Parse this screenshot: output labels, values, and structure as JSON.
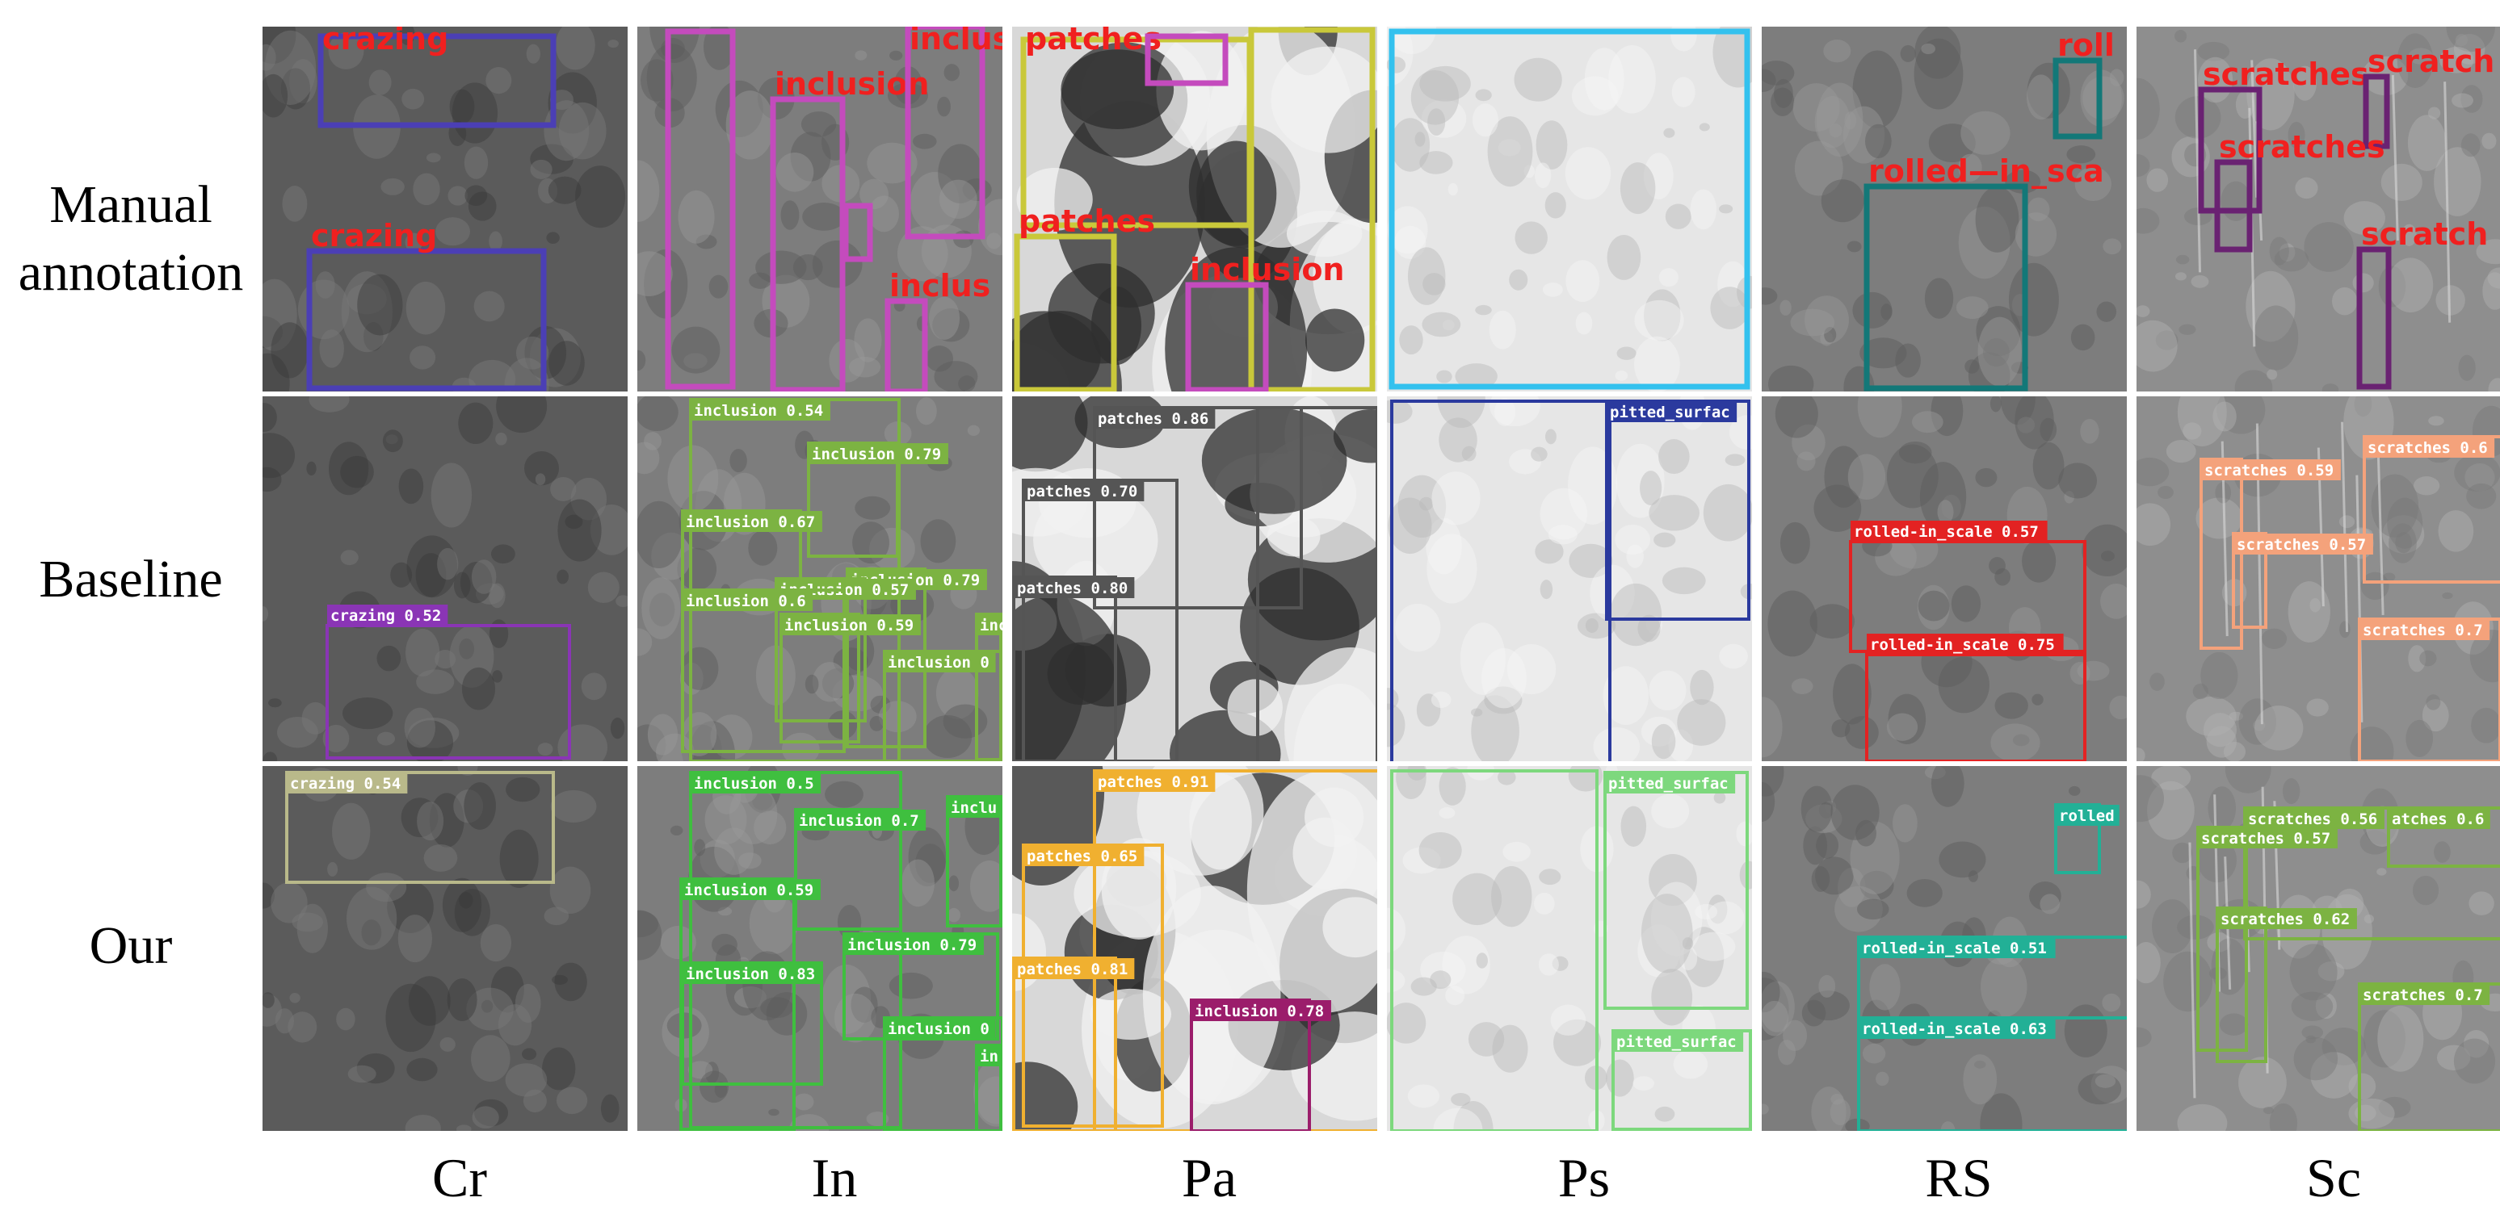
{
  "figure": {
    "rows": [
      {
        "id": "manual",
        "label_lines": [
          "Manual",
          "annotation"
        ]
      },
      {
        "id": "baseline",
        "label_lines": [
          "Baseline"
        ]
      },
      {
        "id": "ours",
        "label_lines": [
          "Our"
        ]
      }
    ],
    "columns": [
      {
        "id": "cr",
        "label": "Cr",
        "tone": "dark"
      },
      {
        "id": "in",
        "label": "In",
        "tone": "mid"
      },
      {
        "id": "pa",
        "label": "Pa",
        "tone": "patchy"
      },
      {
        "id": "ps",
        "label": "Ps",
        "tone": "light"
      },
      {
        "id": "rs",
        "label": "RS",
        "tone": "mid"
      },
      {
        "id": "sc",
        "label": "Sc",
        "tone": "smooth"
      }
    ],
    "colors": {
      "crazing_manual": "#4b3fb5",
      "inclusion_manual": "#c44bbd",
      "patches_manual": "#c9c83a",
      "pitted_manual": "#33c1ee",
      "rolled_manual": "#137878",
      "scratches_manual": "#6a2272",
      "manual_text": "#f0201f",
      "crazing_base": "#8a35b5",
      "inclusion_base": "#7cb342",
      "patches_base": "#555555",
      "pitted_base": "#2b3a9e",
      "rolled_base": "#e32222",
      "scratches_base": "#f4a27b",
      "crazing_ours": "#b9b98a",
      "inclusion_ours": "#3fbf3f",
      "patches_ours": "#f0b030",
      "inclusion_ours_pa": "#9b1d6b",
      "pitted_ours": "#7dd87d",
      "rolled_ours": "#22b096",
      "scratches_ours": "#7cb342"
    },
    "cells": {
      "manual": {
        "cr": [
          {
            "label": "crazing",
            "color": "crazing_manual"
          },
          {
            "label": "crazing",
            "color": "crazing_manual"
          }
        ],
        "in": [
          {
            "label": "",
            "color": "inclusion_manual"
          },
          {
            "label": "inclusion",
            "color": "inclusion_manual"
          },
          {
            "label": "inclusion",
            "color": "inclusion_manual"
          },
          {
            "label": "",
            "color": "inclusion_manual"
          },
          {
            "label": "inclus",
            "color": "inclusion_manual"
          }
        ],
        "pa": [
          {
            "label": "patches",
            "color": "patches_manual"
          },
          {
            "label": "",
            "color": "inclusion_manual"
          },
          {
            "label": "",
            "color": "patches_manual"
          },
          {
            "label": "patches",
            "color": "patches_manual"
          },
          {
            "label": "inclusion",
            "color": "inclusion_manual"
          }
        ],
        "ps": [
          {
            "label": "",
            "color": "pitted_manual"
          }
        ],
        "rs": [
          {
            "label": "roll",
            "color": "rolled_manual"
          },
          {
            "label": "rolled—in_sca",
            "color": "rolled_manual"
          }
        ],
        "sc": [
          {
            "label": "scratches",
            "color": "scratches_manual"
          },
          {
            "label": "scratch",
            "color": "scratches_manual"
          },
          {
            "label": "scratches",
            "color": "scratches_manual"
          },
          {
            "label": "scratch",
            "color": "scratches_manual"
          }
        ]
      },
      "baseline": {
        "cr": [
          {
            "label": "crazing 0.52",
            "color": "crazing_base"
          }
        ],
        "in": [
          {
            "label": "inclusion 0.54",
            "color": "inclusion_base"
          },
          {
            "label": "inclusion 0.79",
            "color": "inclusion_base"
          },
          {
            "label": "inclusion 0.67",
            "color": "inclusion_base"
          },
          {
            "label": "inclusion 0.79",
            "color": "inclusion_base"
          },
          {
            "label": "inclusion 0.57",
            "color": "inclusion_base"
          },
          {
            "label": "inclusion 0.6",
            "color": "inclusion_base"
          },
          {
            "label": "inclusion 0.59",
            "color": "inclusion_base"
          },
          {
            "label": "inclusion 0",
            "color": "inclusion_base"
          },
          {
            "label": "inc",
            "color": "inclusion_base"
          }
        ],
        "pa": [
          {
            "label": "patches 0.86",
            "color": "patches_base"
          },
          {
            "label": "patches 0.70",
            "color": "patches_base"
          },
          {
            "label": "patches 0.80",
            "color": "patches_base"
          },
          {
            "label": "",
            "color": "patches_base"
          }
        ],
        "ps": [
          {
            "label": "",
            "color": "pitted_base"
          },
          {
            "label": "pitted_surfac",
            "color": "pitted_base"
          }
        ],
        "rs": [
          {
            "label": "rolled-in_scale 0.57",
            "color": "rolled_base"
          },
          {
            "label": "rolled-in_scale 0.75",
            "color": "rolled_base"
          }
        ],
        "sc": [
          {
            "label": "scratches 0.59",
            "color": "scratches_base"
          },
          {
            "label": "scratches 0.6",
            "color": "scratches_base"
          },
          {
            "label": "scratches 0.57",
            "color": "scratches_base"
          },
          {
            "label": "scratches 0.7",
            "color": "scratches_base"
          }
        ]
      },
      "ours": {
        "cr": [
          {
            "label": "crazing 0.54",
            "color": "crazing_ours"
          }
        ],
        "in": [
          {
            "label": "inclusion 0.5",
            "color": "inclusion_ours"
          },
          {
            "label": "inclusion 0.7",
            "color": "inclusion_ours"
          },
          {
            "label": "inclu",
            "color": "inclusion_ours"
          },
          {
            "label": "inclusion 0.59",
            "color": "inclusion_ours"
          },
          {
            "label": "inclusion 0.79",
            "color": "inclusion_ours"
          },
          {
            "label": "inclusion 0.83",
            "color": "inclusion_ours"
          },
          {
            "label": "inclusion 0",
            "color": "inclusion_ours"
          },
          {
            "label": "in",
            "color": "inclusion_ours"
          }
        ],
        "pa": [
          {
            "label": "patches 0.91",
            "color": "patches_ours"
          },
          {
            "label": "patches 0.65",
            "color": "patches_ours"
          },
          {
            "label": "patches 0.81",
            "color": "patches_ours"
          },
          {
            "label": "inclusion 0.78",
            "color": "inclusion_ours_pa"
          }
        ],
        "ps": [
          {
            "label": "",
            "color": "pitted_ours"
          },
          {
            "label": "pitted_surfac",
            "color": "pitted_ours"
          },
          {
            "label": "pitted_surfac",
            "color": "pitted_ours"
          }
        ],
        "rs": [
          {
            "label": "rolled",
            "color": "rolled_ours"
          },
          {
            "label": "rolled-in_scale 0.51",
            "color": "rolled_ours"
          },
          {
            "label": "rolled-in_scale 0.63",
            "color": "rolled_ours"
          }
        ],
        "sc": [
          {
            "label": "scratches 0.56",
            "color": "scratches_ours"
          },
          {
            "label": "atches 0.6",
            "color": "scratches_ours"
          },
          {
            "label": "scratches 0.57",
            "color": "scratches_ours"
          },
          {
            "label": "scratches 0.62",
            "color": "scratches_ours"
          },
          {
            "label": "scratches 0.7",
            "color": "scratches_ours"
          }
        ]
      }
    }
  }
}
